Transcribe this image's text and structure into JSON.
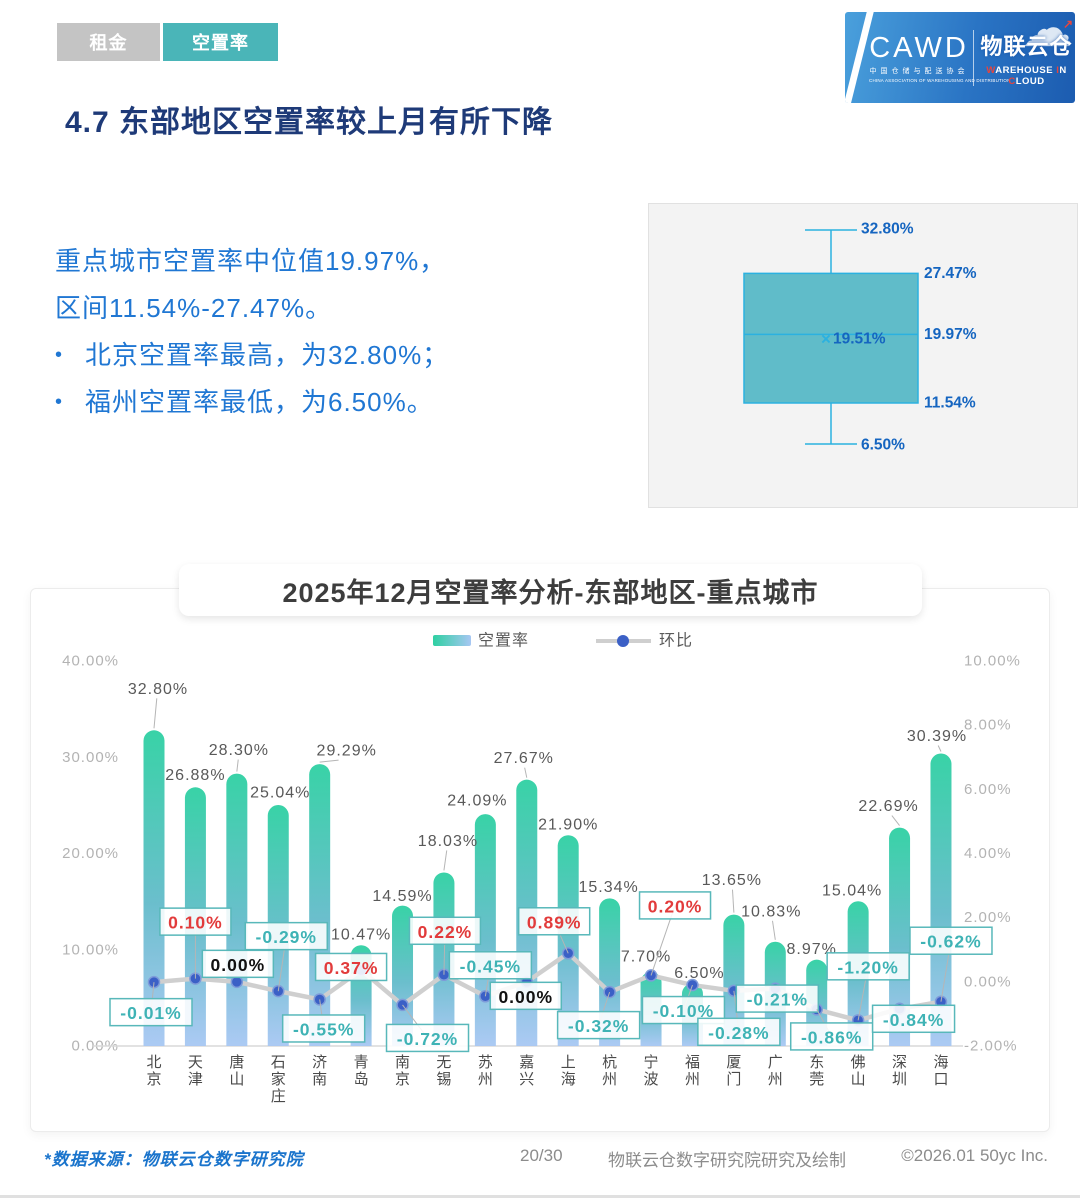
{
  "tabs": [
    {
      "label": "租金",
      "active": false
    },
    {
      "label": "空置率",
      "active": true
    }
  ],
  "logo": {
    "cawd": "CAWD",
    "cawd_cn": "中国仓储与配送协会",
    "cawd_en": "CHINA ASSOCIATION OF WAREHOUSING AND DISTRIBUTION",
    "wic_cn": "物联云仓",
    "wic_en": "WAREHOUSE IN CLOUD"
  },
  "page_title": "4.7 东部地区空置率较上月有所下降",
  "summary": {
    "line1": "重点城市空置率中位值19.97%，",
    "line2": "区间11.54%-27.47%。",
    "bullets": [
      "北京空置率最高，为32.80%；",
      "福州空置率最低，为6.50%。"
    ]
  },
  "chart_data": [
    {
      "type": "bar+line",
      "title": "2025年12月空置率分析-东部地区-重点城市",
      "categories": [
        "北京",
        "天津",
        "唐山",
        "石家庄",
        "济南",
        "青岛",
        "南京",
        "无锡",
        "苏州",
        "嘉兴",
        "上海",
        "杭州",
        "宁波",
        "福州",
        "厦门",
        "广州",
        "东莞",
        "佛山",
        "深圳",
        "海口"
      ],
      "series": [
        {
          "name": "空置率",
          "type": "bar",
          "axis": "left",
          "unit": "%",
          "values": [
            32.8,
            26.88,
            28.3,
            25.04,
            29.29,
            10.47,
            14.59,
            18.03,
            24.09,
            27.67,
            21.9,
            15.34,
            7.7,
            6.5,
            13.65,
            10.83,
            8.97,
            15.04,
            22.69,
            30.39
          ]
        },
        {
          "name": "环比",
          "type": "line",
          "axis": "right",
          "unit": "%",
          "values": [
            -0.01,
            0.1,
            0.0,
            -0.29,
            -0.55,
            0.37,
            -0.72,
            0.22,
            -0.45,
            0.0,
            0.89,
            -0.32,
            0.2,
            -0.1,
            -0.28,
            -0.21,
            -0.86,
            -1.2,
            -0.84,
            -0.62
          ]
        }
      ],
      "left_axis_ticks": [
        "40.00%",
        "30.00%",
        "20.00%",
        "10.00%",
        "0.00%"
      ],
      "right_axis_ticks": [
        "10.00%",
        "8.00%",
        "6.00%",
        "4.00%",
        "2.00%",
        "0.00%",
        "-2.00%"
      ],
      "left_range": [
        0,
        40
      ],
      "right_range": [
        -2,
        10
      ],
      "legend_position": "top",
      "grid": false
    },
    {
      "type": "boxplot",
      "labels": {
        "max": "32.80%",
        "q3": "27.47%",
        "median": "19.97%",
        "mean": "19.51%",
        "q1": "11.54%",
        "min": "6.50%"
      },
      "values": {
        "max": 32.8,
        "q3": 27.47,
        "median": 19.97,
        "mean": 19.51,
        "q1": 11.54,
        "min": 6.5
      }
    }
  ],
  "footer": {
    "source": "*数据来源：物联云仓数字研究院",
    "page": "20/30",
    "credit": "物联云仓数字研究院研究及绘制",
    "copyright": "©2026.01 50yc Inc."
  },
  "colors": {
    "tab_teal": "#4ab5b8",
    "tab_gray": "#c4c4c4",
    "title_navy": "#1e3a78",
    "body_blue": "#2077d3",
    "bar_top": "#2ed0a2",
    "bar_mid": "#63bbca",
    "bar_bottom": "#a7c7f3",
    "line_gray": "#cfcfcf",
    "dot_blue": "#3b60c6",
    "positive_red": "#e23b3b",
    "negative_teal": "#3fb3b5",
    "zero_black": "#111111",
    "box_fill": "#54b7c5",
    "box_border": "#2bb1e0",
    "boxplot_label_blue": "#1565c0",
    "axis_gray": "#b3b3b3",
    "bar_label_gray": "#595959"
  }
}
